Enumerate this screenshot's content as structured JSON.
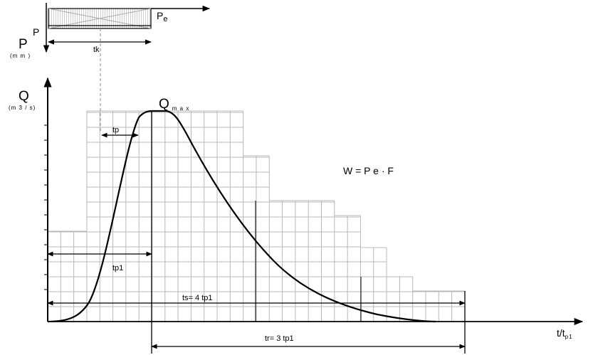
{
  "diagram": {
    "axis_q_label": "Q",
    "axis_q_unit": "(m 3 / s)",
    "axis_p_label": "P",
    "axis_p_unit": "(m m )",
    "axis_t_label": "t/t",
    "axis_t_sub": "p1",
    "rain_p_label": "P",
    "rain_pe_label": "P",
    "rain_pe_sub": "e",
    "tk_label": "tk",
    "qmax_label": "Q",
    "qmax_sub": "m a x",
    "tp_label": "tp",
    "tp1_label": "tp1",
    "ts_label": "ts= 4  tp1",
    "tr_label": "tr= 3  tp1",
    "formula": "W  = P e  · F"
  },
  "colors": {
    "line": "#000000",
    "grid": "#b8b8b8"
  },
  "icons": [
    "arrow-right-icon",
    "arrow-up-icon",
    "arrow-down-icon",
    "double-arrow-icon"
  ]
}
